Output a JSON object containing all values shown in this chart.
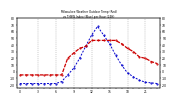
{
  "hours": [
    0,
    1,
    2,
    3,
    4,
    5,
    6,
    7,
    8,
    9,
    10,
    11,
    12,
    13,
    14,
    15,
    16,
    17,
    18,
    19,
    20,
    21,
    22,
    23
  ],
  "temp_red": [
    -5,
    -5,
    -5,
    -5,
    -5,
    -5,
    -5,
    -5,
    20,
    28,
    35,
    38,
    47,
    47,
    47,
    47,
    47,
    42,
    35,
    30,
    22,
    20,
    15,
    12
  ],
  "thsw_blue": [
    -18,
    -18,
    -18,
    -18,
    -18,
    -18,
    -18,
    -15,
    -5,
    5,
    20,
    38,
    55,
    68,
    55,
    42,
    25,
    10,
    -2,
    -8,
    -13,
    -16,
    -17,
    -18
  ],
  "temp_color": "#cc0000",
  "thsw_color": "#0000cc",
  "bg_color": "#ffffff",
  "ylim": [
    -25,
    80
  ],
  "yticks": [
    -20,
    -10,
    0,
    10,
    20,
    30,
    40,
    50,
    60,
    70,
    80
  ],
  "ytick_labels": [
    "-20",
    "-10",
    "0",
    "10",
    "20",
    "30",
    "40",
    "50",
    "60",
    "70",
    "80"
  ],
  "grid_hours": [
    3,
    6,
    9,
    12,
    15,
    18,
    21
  ],
  "grid_color": "#999999",
  "xtick_every": 3
}
